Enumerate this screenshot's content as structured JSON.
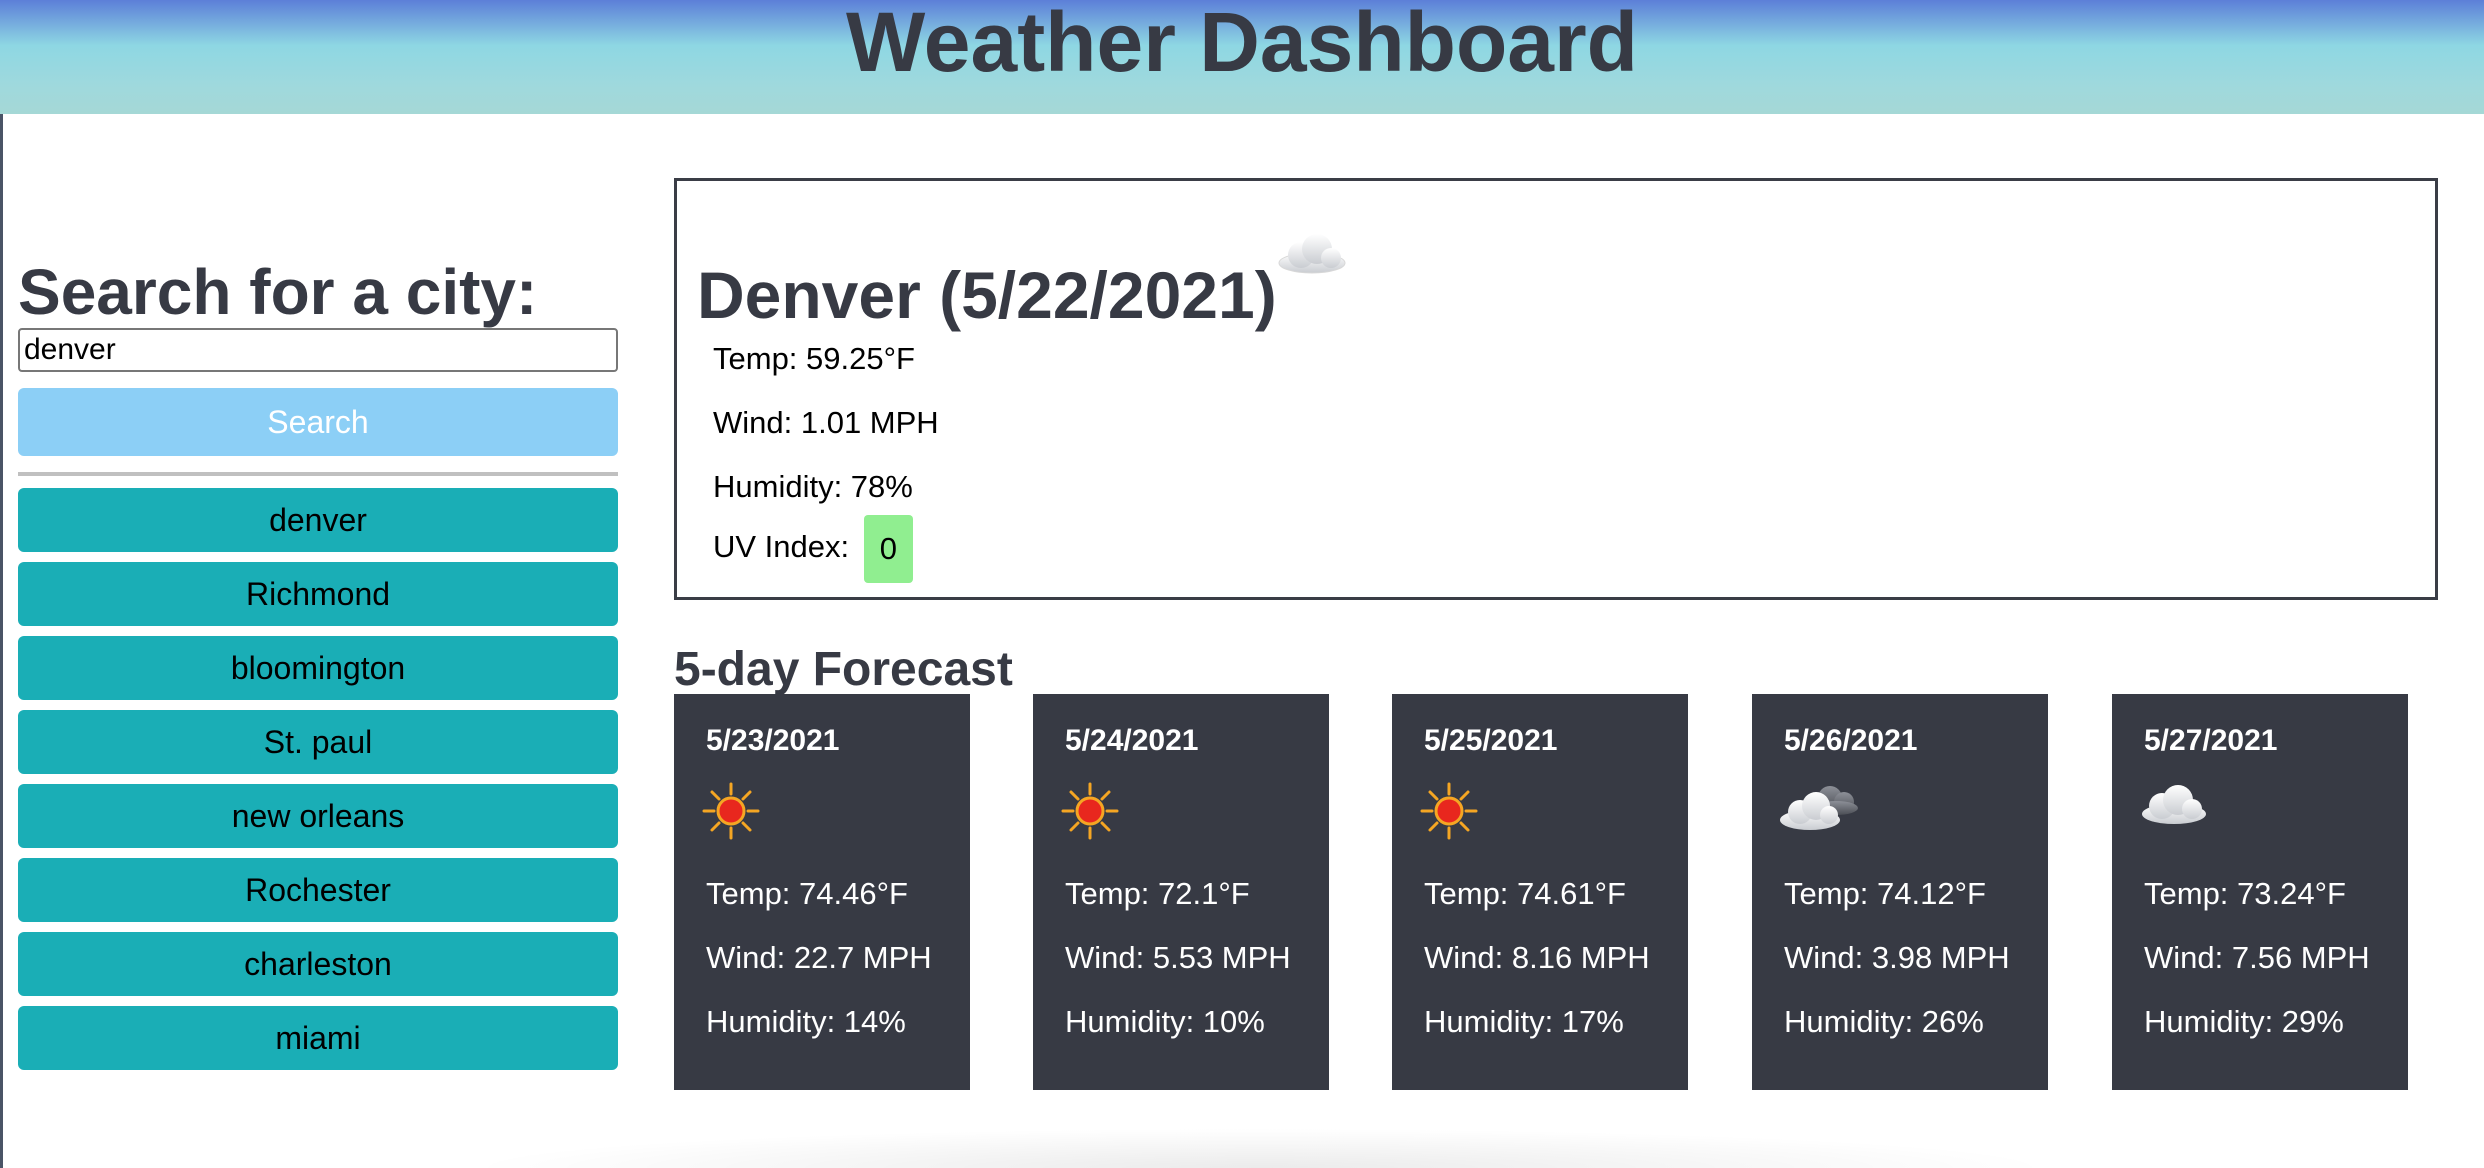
{
  "header": {
    "title": "Weather Dashboard"
  },
  "search": {
    "heading": "Search for a city:",
    "value": "denver",
    "button_label": "Search"
  },
  "history": [
    "denver",
    "Richmond",
    "bloomington",
    "St. paul",
    "new orleans",
    "Rochester",
    "charleston",
    "miami"
  ],
  "current": {
    "title": "Denver (5/22/2021)",
    "icon": "cloud-icon",
    "temp": "Temp: 59.25°F",
    "wind": "Wind: 1.01 MPH",
    "humidity": "Humidity: 78%",
    "uv_label": "UV Index:",
    "uv_value": "0",
    "uv_color": "#90ee90"
  },
  "forecast": {
    "title": "5-day Forecast",
    "days": [
      {
        "date": "5/23/2021",
        "icon": "sun-icon",
        "temp": "Temp: 74.46°F",
        "wind": "Wind: 22.7 MPH",
        "humidity": "Humidity: 14%"
      },
      {
        "date": "5/24/2021",
        "icon": "sun-icon",
        "temp": "Temp: 72.1°F",
        "wind": "Wind: 5.53 MPH",
        "humidity": "Humidity: 10%"
      },
      {
        "date": "5/25/2021",
        "icon": "sun-icon",
        "temp": "Temp: 74.61°F",
        "wind": "Wind: 8.16 MPH",
        "humidity": "Humidity: 17%"
      },
      {
        "date": "5/26/2021",
        "icon": "broken-clouds-icon",
        "temp": "Temp: 74.12°F",
        "wind": "Wind: 3.98 MPH",
        "humidity": "Humidity: 26%"
      },
      {
        "date": "5/27/2021",
        "icon": "cloud-icon",
        "temp": "Temp: 73.24°F",
        "wind": "Wind: 7.56 MPH",
        "humidity": "Humidity: 29%"
      }
    ]
  },
  "colors": {
    "history_button": "#1aaeb6",
    "search_button": "#8ccff6",
    "card_background": "#373a44"
  }
}
